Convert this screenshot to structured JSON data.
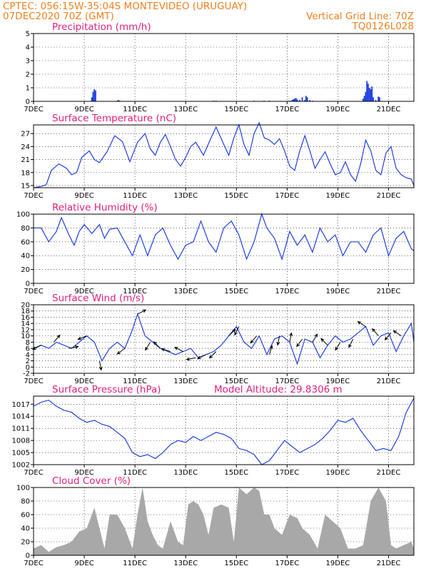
{
  "header": {
    "line1_left": "CPTEC:   056:15W-35:04S   MONTEVIDEO (URUGUAY)",
    "line2_left": "07DEC2020 70Z (GMT)",
    "line2_right": "Vertical Grid Line: 70Z",
    "line3_right": "TQ0126L028"
  },
  "colors": {
    "header": "#f08020",
    "title": "#e0207e",
    "line": "#2040e0",
    "bars": "#2040e0",
    "cloud": "#a8a8a8"
  },
  "x_axis": {
    "range_days": [
      7,
      22
    ],
    "ticks": [
      7,
      9,
      11,
      13,
      15,
      17,
      19,
      21
    ],
    "labels": [
      "7DEC",
      "9DEC",
      "11DEC",
      "13DEC",
      "15DEC",
      "17DEC",
      "19DEC",
      "21DEC"
    ]
  },
  "chart_data": [
    {
      "type": "bar",
      "title": "Precipitation (mm/h)",
      "ylim": [
        0,
        5
      ],
      "yticks": [
        0,
        1,
        2,
        3,
        4,
        5
      ],
      "series": [
        {
          "x": [
            9.3,
            9.35,
            9.4,
            9.45,
            10.3,
            10.35,
            10.4,
            14.1,
            14.2,
            15.7,
            16.1,
            16.3,
            17.1,
            17.2,
            17.25,
            17.3,
            17.35,
            17.4,
            17.5,
            17.6,
            17.7,
            17.75,
            17.8,
            17.9,
            18.0,
            20.0,
            20.05,
            20.1,
            20.15,
            20.2,
            20.25,
            20.3,
            20.35,
            20.4,
            20.5,
            20.6,
            20.65
          ],
          "values": [
            0.3,
            0.7,
            0.9,
            0.8,
            0.05,
            0.1,
            0.05,
            0.05,
            0.05,
            0.05,
            0.05,
            0.05,
            0.05,
            0.1,
            0.15,
            0.2,
            0.25,
            0.15,
            0.1,
            0.3,
            0.1,
            0.4,
            0.3,
            0.1,
            0.05,
            0.2,
            0.4,
            0.7,
            1.5,
            1.3,
            1.0,
            0.9,
            1.1,
            0.3,
            0.1,
            0.35,
            0.3
          ]
        }
      ]
    },
    {
      "type": "line",
      "title": "Surface Temperature (nC)",
      "ylim": [
        14.5,
        29
      ],
      "yticks": [
        15,
        18,
        21,
        24,
        27
      ],
      "series": [
        {
          "x": [
            7.0,
            7.3,
            7.5,
            7.7,
            8.0,
            8.3,
            8.5,
            8.7,
            8.9,
            9.2,
            9.4,
            9.6,
            9.9,
            10.2,
            10.5,
            10.8,
            11.1,
            11.4,
            11.6,
            11.8,
            12.0,
            12.2,
            12.4,
            12.6,
            12.8,
            13.0,
            13.2,
            13.4,
            13.7,
            14.0,
            14.2,
            14.5,
            14.7,
            14.9,
            15.1,
            15.3,
            15.5,
            15.7,
            15.9,
            16.1,
            16.3,
            16.5,
            16.7,
            16.9,
            17.1,
            17.3,
            17.5,
            17.7,
            17.9,
            18.1,
            18.3,
            18.5,
            18.7,
            18.9,
            19.1,
            19.3,
            19.5,
            19.7,
            19.9,
            20.1,
            20.3,
            20.5,
            20.7,
            20.9,
            21.1,
            21.3,
            21.5,
            21.7,
            21.9,
            22.0
          ],
          "values": [
            14.5,
            14.8,
            15.2,
            18.5,
            20.0,
            19.0,
            17.5,
            18.0,
            21.5,
            23.0,
            21.0,
            20.3,
            22.8,
            26.5,
            25.2,
            20.5,
            25.0,
            27.0,
            23.5,
            22.0,
            25.0,
            26.8,
            24.0,
            21.0,
            19.5,
            21.5,
            24.0,
            25.0,
            22.0,
            26.0,
            28.5,
            24.5,
            22.0,
            26.0,
            29.0,
            24.5,
            22.0,
            27.0,
            29.5,
            26.0,
            25.5,
            24.5,
            25.8,
            23.0,
            19.5,
            18.5,
            23.0,
            26.5,
            23.0,
            19.0,
            21.0,
            22.8,
            20.0,
            17.5,
            18.0,
            20.5,
            17.5,
            16.0,
            20.0,
            25.5,
            23.0,
            18.5,
            17.5,
            22.5,
            24.0,
            19.0,
            17.5,
            16.8,
            16.5,
            15.0
          ]
        }
      ]
    },
    {
      "type": "line",
      "title": "Relative Humidity (%)",
      "ylim": [
        0,
        100
      ],
      "yticks": [
        0,
        20,
        40,
        60,
        80,
        100
      ],
      "series": [
        {
          "x": [
            7.0,
            7.3,
            7.6,
            7.9,
            8.1,
            8.4,
            8.6,
            8.8,
            9.0,
            9.3,
            9.6,
            9.8,
            10.0,
            10.3,
            10.6,
            10.9,
            11.2,
            11.5,
            11.8,
            12.1,
            12.4,
            12.7,
            13.0,
            13.3,
            13.6,
            13.9,
            14.2,
            14.5,
            14.8,
            15.1,
            15.4,
            15.7,
            16.0,
            16.2,
            16.5,
            16.8,
            17.1,
            17.4,
            17.7,
            18.0,
            18.3,
            18.6,
            18.9,
            19.2,
            19.5,
            19.8,
            20.1,
            20.4,
            20.7,
            21.0,
            21.3,
            21.6,
            21.9,
            22.0
          ],
          "values": [
            80,
            80,
            60,
            75,
            95,
            70,
            55,
            75,
            85,
            72,
            85,
            65,
            78,
            80,
            60,
            40,
            70,
            40,
            70,
            80,
            55,
            35,
            55,
            60,
            90,
            60,
            45,
            80,
            90,
            70,
            35,
            60,
            100,
            80,
            65,
            35,
            75,
            55,
            70,
            45,
            80,
            60,
            70,
            40,
            60,
            60,
            45,
            70,
            80,
            40,
            65,
            75,
            50,
            47
          ]
        }
      ]
    },
    {
      "type": "line",
      "title": "Surface Wind (m/s)",
      "ylim": [
        -2,
        20
      ],
      "yticks": [
        -2,
        0,
        2,
        4,
        6,
        8,
        10,
        12,
        14,
        16,
        18,
        20
      ],
      "series": [
        {
          "x": [
            7.0,
            7.3,
            7.6,
            7.9,
            8.2,
            8.5,
            8.8,
            9.1,
            9.4,
            9.7,
            10.0,
            10.3,
            10.6,
            10.9,
            11.1,
            11.4,
            11.7,
            12.0,
            12.3,
            12.6,
            12.9,
            13.2,
            13.5,
            13.8,
            14.1,
            14.4,
            14.7,
            15.0,
            15.3,
            15.6,
            15.9,
            16.2,
            16.5,
            16.8,
            17.1,
            17.4,
            17.7,
            18.0,
            18.3,
            18.6,
            18.9,
            19.2,
            19.5,
            19.8,
            20.1,
            20.4,
            20.7,
            21.0,
            21.3,
            21.6,
            21.9,
            22.0
          ],
          "values": [
            6,
            7,
            6,
            8,
            7,
            6,
            8,
            10,
            8,
            2,
            6,
            8,
            6,
            12,
            17,
            10,
            8,
            6,
            5,
            4,
            5,
            6,
            3,
            4,
            5,
            7,
            10,
            13,
            8,
            6,
            10,
            4,
            9,
            10,
            8,
            1,
            9,
            8,
            3,
            7,
            10,
            8,
            9,
            11,
            13,
            7,
            10,
            11,
            5,
            10,
            14,
            8
          ]
        }
      ],
      "wind_vectors": [
        {
          "x": 7.3,
          "u": -1,
          "v": -0.5
        },
        {
          "x": 7.8,
          "u": 0.6,
          "v": 0.7
        },
        {
          "x": 8.4,
          "u": 1,
          "v": 0.2
        },
        {
          "x": 9.1,
          "u": -1,
          "v": -0.4
        },
        {
          "x": 9.6,
          "u": 0.2,
          "v": -1
        },
        {
          "x": 10.6,
          "u": -0.8,
          "v": -0.6
        },
        {
          "x": 11.1,
          "u": 1,
          "v": 0.5
        },
        {
          "x": 11.6,
          "u": -0.6,
          "v": -1
        },
        {
          "x": 12.0,
          "u": -0.7,
          "v": 0.7
        },
        {
          "x": 12.4,
          "u": -1,
          "v": 0.3
        },
        {
          "x": 12.9,
          "u": -1,
          "v": 0.5
        },
        {
          "x": 13.4,
          "u": -1,
          "v": -0.2
        },
        {
          "x": 13.8,
          "u": -1,
          "v": -0.5
        },
        {
          "x": 14.2,
          "u": -0.5,
          "v": -0.5
        },
        {
          "x": 14.7,
          "u": 0.5,
          "v": 0.5
        },
        {
          "x": 15.1,
          "u": -0.4,
          "v": -0.8
        },
        {
          "x": 15.8,
          "u": -0.6,
          "v": -0.7
        },
        {
          "x": 16.3,
          "u": 0.3,
          "v": 1
        },
        {
          "x": 16.7,
          "u": -0.2,
          "v": -1
        },
        {
          "x": 17.1,
          "u": 0.2,
          "v": 1
        },
        {
          "x": 17.6,
          "u": -0.6,
          "v": -0.8
        },
        {
          "x": 18.0,
          "u": 0.6,
          "v": 1
        },
        {
          "x": 18.6,
          "u": -0.8,
          "v": 0.8
        },
        {
          "x": 19.1,
          "u": -0.5,
          "v": -0.8
        },
        {
          "x": 19.6,
          "u": -0.5,
          "v": -1
        },
        {
          "x": 20.1,
          "u": -0.8,
          "v": 0.5
        },
        {
          "x": 20.6,
          "u": -0.5,
          "v": 0.6
        },
        {
          "x": 21.1,
          "u": -0.6,
          "v": -0.7
        },
        {
          "x": 21.5,
          "u": -0.9,
          "v": 0.6
        }
      ]
    },
    {
      "type": "line",
      "title": "Surface Pressure (hPa)",
      "subtitle": "Model Altitude: 29.8306 m",
      "ylim": [
        1002,
        1019
      ],
      "yticks": [
        1002,
        1005,
        1008,
        1011,
        1014,
        1017
      ],
      "series": [
        {
          "x": [
            7.0,
            7.3,
            7.6,
            7.9,
            8.2,
            8.5,
            8.8,
            9.1,
            9.4,
            9.7,
            10.0,
            10.3,
            10.6,
            10.9,
            11.2,
            11.5,
            11.8,
            12.1,
            12.4,
            12.7,
            13.0,
            13.3,
            13.6,
            13.9,
            14.2,
            14.5,
            14.8,
            15.1,
            15.4,
            15.7,
            16.0,
            16.3,
            16.6,
            16.9,
            17.2,
            17.5,
            17.8,
            18.1,
            18.4,
            18.7,
            19.0,
            19.3,
            19.6,
            19.9,
            20.2,
            20.5,
            20.8,
            21.1,
            21.4,
            21.7,
            22.0
          ],
          "values": [
            1016.5,
            1017.5,
            1018.0,
            1016.5,
            1015.5,
            1015.0,
            1013.5,
            1012.5,
            1013.0,
            1012.0,
            1011.5,
            1010.0,
            1008.5,
            1005.0,
            1004.0,
            1004.5,
            1003.5,
            1005.0,
            1007.0,
            1008.0,
            1007.5,
            1009.0,
            1008.0,
            1009.0,
            1010.0,
            1009.5,
            1008.5,
            1006.0,
            1005.5,
            1004.5,
            1002.0,
            1003.0,
            1005.5,
            1008.0,
            1006.5,
            1005.0,
            1006.0,
            1007.0,
            1008.5,
            1010.5,
            1013.0,
            1012.5,
            1013.5,
            1010.5,
            1008.0,
            1005.5,
            1006.0,
            1005.5,
            1009.0,
            1015.0,
            1018.5
          ]
        }
      ]
    },
    {
      "type": "area",
      "title": "Cloud Cover (%)",
      "ylim": [
        0,
        100
      ],
      "yticks": [
        0,
        20,
        40,
        60,
        80,
        100
      ],
      "series": [
        {
          "x": [
            7.0,
            7.3,
            7.6,
            7.9,
            8.2,
            8.5,
            8.8,
            9.1,
            9.4,
            9.6,
            9.8,
            10.0,
            10.3,
            10.6,
            10.9,
            11.1,
            11.3,
            11.5,
            11.7,
            11.9,
            12.1,
            12.4,
            12.7,
            12.9,
            13.1,
            13.3,
            13.5,
            13.7,
            13.9,
            14.1,
            14.4,
            14.7,
            14.9,
            15.1,
            15.4,
            15.7,
            15.9,
            16.1,
            16.3,
            16.5,
            16.8,
            17.1,
            17.4,
            17.6,
            17.9,
            18.2,
            18.5,
            18.8,
            19.1,
            19.4,
            19.7,
            20.0,
            20.3,
            20.6,
            20.9,
            21.1,
            21.3,
            21.6,
            21.9,
            22.0
          ],
          "values": [
            10,
            15,
            5,
            12,
            15,
            20,
            35,
            40,
            70,
            40,
            10,
            60,
            60,
            40,
            10,
            60,
            100,
            50,
            30,
            15,
            10,
            50,
            20,
            15,
            75,
            80,
            75,
            60,
            30,
            70,
            75,
            70,
            20,
            100,
            90,
            100,
            95,
            60,
            60,
            40,
            30,
            60,
            55,
            40,
            30,
            10,
            60,
            50,
            40,
            10,
            10,
            15,
            80,
            100,
            80,
            15,
            10,
            15,
            20,
            10
          ]
        }
      ]
    }
  ]
}
